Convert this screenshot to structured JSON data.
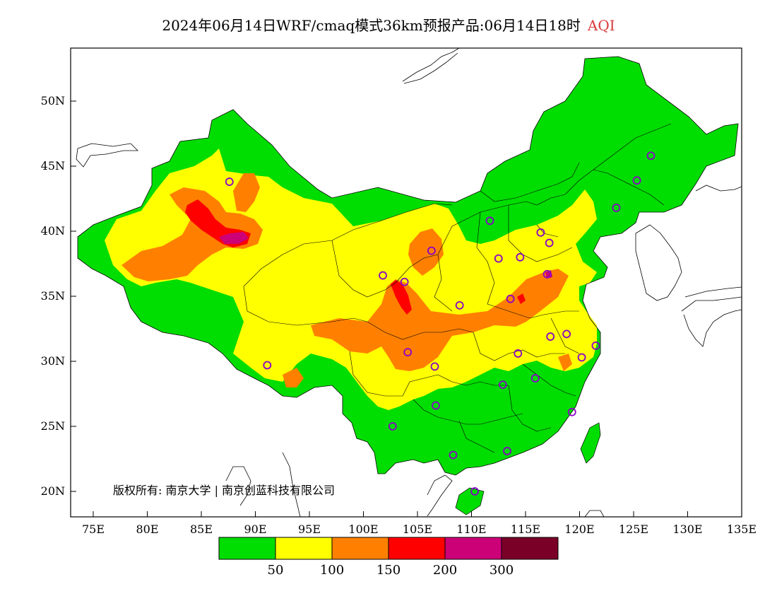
{
  "title": {
    "text": "2024年06月14日WRF/cmaq模式36km预报产品:06月14日18时",
    "variable": "AQI"
  },
  "axes": {
    "lat_ticks": [
      "50N",
      "45N",
      "40N",
      "35N",
      "30N",
      "25N",
      "20N"
    ],
    "lon_ticks": [
      "75E",
      "80E",
      "85E",
      "90E",
      "95E",
      "100E",
      "105E",
      "110E",
      "115E",
      "120E",
      "125E",
      "130E",
      "135E"
    ]
  },
  "copyright": "版权所有: 南京大学 | 南京创蓝科技有限公司",
  "legend": {
    "colors": [
      "#00dd00",
      "#ffff00",
      "#ff8000",
      "#ff0000",
      "#cc0077",
      "#7a0028"
    ],
    "breaks": [
      "50",
      "100",
      "150",
      "200",
      "300"
    ]
  },
  "stations": [
    [
      87.6,
      43.8
    ],
    [
      91.1,
      29.7
    ],
    [
      101.8,
      36.6
    ],
    [
      103.8,
      36.1
    ],
    [
      106.3,
      38.5
    ],
    [
      111.7,
      40.8
    ],
    [
      116.4,
      39.9
    ],
    [
      117.2,
      39.1
    ],
    [
      114.5,
      38.0
    ],
    [
      112.5,
      37.9
    ],
    [
      117.0,
      36.7
    ],
    [
      113.6,
      34.8
    ],
    [
      108.9,
      34.3
    ],
    [
      104.1,
      30.7
    ],
    [
      106.6,
      29.6
    ],
    [
      106.7,
      26.6
    ],
    [
      102.7,
      25.0
    ],
    [
      108.3,
      22.8
    ],
    [
      110.3,
      20.0
    ],
    [
      113.3,
      23.1
    ],
    [
      112.9,
      28.2
    ],
    [
      115.9,
      28.7
    ],
    [
      114.3,
      30.6
    ],
    [
      117.3,
      31.9
    ],
    [
      118.8,
      32.1
    ],
    [
      120.2,
      30.3
    ],
    [
      121.5,
      31.2
    ],
    [
      119.3,
      26.1
    ],
    [
      123.4,
      41.8
    ],
    [
      125.3,
      43.9
    ],
    [
      126.6,
      45.8
    ]
  ]
}
